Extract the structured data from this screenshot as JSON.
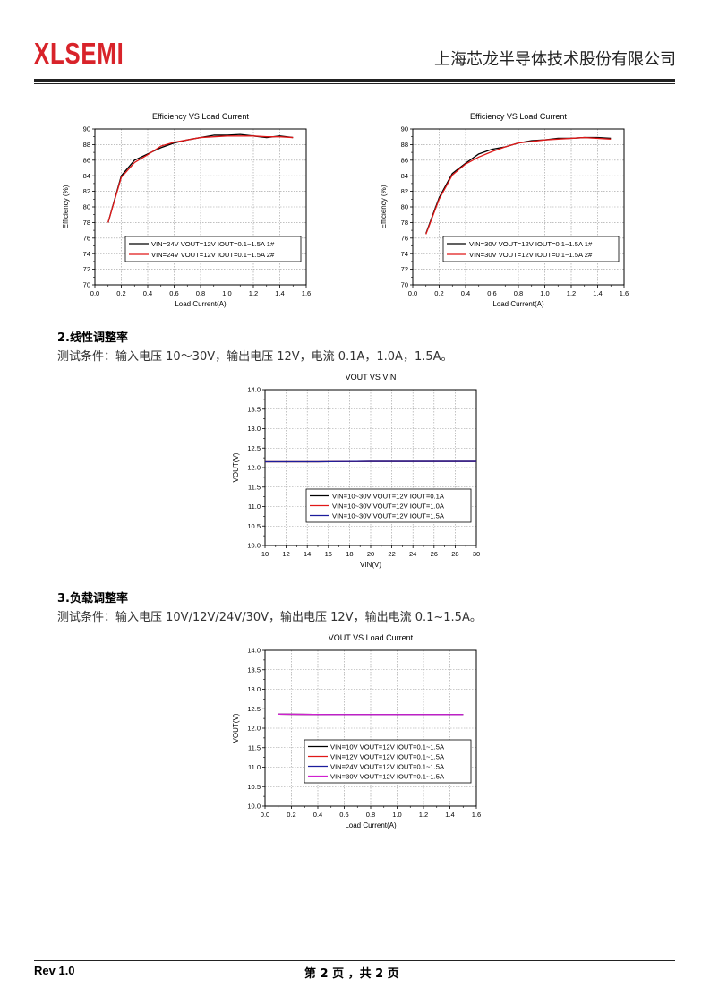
{
  "header": {
    "logo": "XLSEMI",
    "company": "上海芯龙半导体技术股份有限公司"
  },
  "sections": [
    {
      "heading": "2.线性调整率",
      "desc": "测试条件：输入电压 10～30V，输出电压 12V，电流 0.1A，1.0A，1.5A。"
    },
    {
      "heading": "3.负载调整率",
      "desc": "测试条件：输入电压 10V/12V/24V/30V，输出电压 12V，输出电流 0.1~1.5A。"
    }
  ],
  "footer": {
    "rev": "Rev 1.0",
    "page": "第 2 页 ，共 2 页"
  },
  "chart_data": [
    {
      "type": "line",
      "title": "Efficiency VS Load Current",
      "xlabel": "Load Current(A)",
      "ylabel": "Efficiency (%)",
      "xlim": [
        0.0,
        1.6
      ],
      "ylim": [
        70,
        90
      ],
      "xticks": [
        "0.0",
        "0.2",
        "0.4",
        "0.6",
        "0.8",
        "1.0",
        "1.2",
        "1.4",
        "1.6"
      ],
      "yticks": [
        "70",
        "72",
        "74",
        "76",
        "78",
        "80",
        "82",
        "84",
        "86",
        "88",
        "90"
      ],
      "grid": true,
      "legend_position": "bottom-right",
      "series": [
        {
          "name": "VIN=24V VOUT=12V IOUT=0.1~1.5A 1#",
          "color": "#000000",
          "points": [
            [
              0.1,
              78.0
            ],
            [
              0.2,
              84.0
            ],
            [
              0.3,
              86.0
            ],
            [
              0.4,
              86.8
            ],
            [
              0.5,
              87.6
            ],
            [
              0.6,
              88.2
            ],
            [
              0.7,
              88.6
            ],
            [
              0.8,
              88.9
            ],
            [
              0.9,
              89.2
            ],
            [
              1.0,
              89.2
            ],
            [
              1.1,
              89.3
            ],
            [
              1.2,
              89.1
            ],
            [
              1.3,
              88.9
            ],
            [
              1.4,
              89.1
            ],
            [
              1.5,
              88.9
            ]
          ]
        },
        {
          "name": "VIN=24V VOUT=12V IOUT=0.1~1.5A 2#",
          "color": "#e01818",
          "points": [
            [
              0.1,
              78.0
            ],
            [
              0.2,
              83.8
            ],
            [
              0.3,
              85.7
            ],
            [
              0.4,
              86.7
            ],
            [
              0.5,
              87.8
            ],
            [
              0.6,
              88.3
            ],
            [
              0.7,
              88.6
            ],
            [
              0.8,
              88.9
            ],
            [
              0.9,
              89.0
            ],
            [
              1.0,
              89.1
            ],
            [
              1.1,
              89.1
            ],
            [
              1.2,
              89.1
            ],
            [
              1.3,
              89.0
            ],
            [
              1.4,
              89.0
            ],
            [
              1.5,
              88.9
            ]
          ]
        }
      ]
    },
    {
      "type": "line",
      "title": "Efficiency VS Load Current",
      "xlabel": "Load Current(A)",
      "ylabel": "Efficiency (%)",
      "xlim": [
        0.0,
        1.6
      ],
      "ylim": [
        70,
        90
      ],
      "xticks": [
        "0.0",
        "0.2",
        "0.4",
        "0.6",
        "0.8",
        "1.0",
        "1.2",
        "1.4",
        "1.6"
      ],
      "yticks": [
        "70",
        "72",
        "74",
        "76",
        "78",
        "80",
        "82",
        "84",
        "86",
        "88",
        "90"
      ],
      "grid": true,
      "legend_position": "bottom-right",
      "series": [
        {
          "name": "VIN=30V VOUT=12V IOUT=0.1~1.5A 1#",
          "color": "#000000",
          "points": [
            [
              0.1,
              76.6
            ],
            [
              0.2,
              81.2
            ],
            [
              0.3,
              84.3
            ],
            [
              0.4,
              85.6
            ],
            [
              0.5,
              86.8
            ],
            [
              0.6,
              87.4
            ],
            [
              0.7,
              87.7
            ],
            [
              0.8,
              88.2
            ],
            [
              0.9,
              88.5
            ],
            [
              1.0,
              88.6
            ],
            [
              1.1,
              88.8
            ],
            [
              1.2,
              88.8
            ],
            [
              1.3,
              88.9
            ],
            [
              1.4,
              88.9
            ],
            [
              1.5,
              88.8
            ]
          ]
        },
        {
          "name": "VIN=30V VOUT=12V IOUT=0.1~1.5A 2#",
          "color": "#e01818",
          "points": [
            [
              0.1,
              76.5
            ],
            [
              0.2,
              81.0
            ],
            [
              0.3,
              84.1
            ],
            [
              0.4,
              85.5
            ],
            [
              0.5,
              86.4
            ],
            [
              0.6,
              87.1
            ],
            [
              0.7,
              87.7
            ],
            [
              0.8,
              88.2
            ],
            [
              0.9,
              88.4
            ],
            [
              1.0,
              88.6
            ],
            [
              1.1,
              88.7
            ],
            [
              1.2,
              88.8
            ],
            [
              1.3,
              88.9
            ],
            [
              1.4,
              88.8
            ],
            [
              1.5,
              88.7
            ]
          ]
        }
      ]
    },
    {
      "type": "line",
      "title": "VOUT VS VIN",
      "xlabel": "VIN(V)",
      "ylabel": "VOUT(V)",
      "xlim": [
        10,
        30
      ],
      "ylim": [
        10.0,
        14.0
      ],
      "xticks": [
        "10",
        "12",
        "14",
        "16",
        "18",
        "20",
        "22",
        "24",
        "26",
        "28",
        "30"
      ],
      "yticks": [
        "10.0",
        "10.5",
        "11.0",
        "11.5",
        "12.0",
        "12.5",
        "13.0",
        "13.5",
        "14.0"
      ],
      "grid": true,
      "legend_position": "bottom-right",
      "series": [
        {
          "name": "VIN=10~30V VOUT=12V IOUT=0.1A",
          "color": "#000000",
          "points": [
            [
              10,
              12.15
            ],
            [
              15,
              12.15
            ],
            [
              20,
              12.16
            ],
            [
              25,
              12.16
            ],
            [
              30,
              12.16
            ]
          ]
        },
        {
          "name": "VIN=10~30V VOUT=12V IOUT=1.0A",
          "color": "#e01818",
          "points": [
            [
              10,
              12.15
            ],
            [
              15,
              12.15
            ],
            [
              20,
              12.16
            ],
            [
              25,
              12.16
            ],
            [
              30,
              12.16
            ]
          ]
        },
        {
          "name": "VIN=10~30V VOUT=12V IOUT=1.5A",
          "color": "#1c1c9c",
          "points": [
            [
              10,
              12.15
            ],
            [
              15,
              12.15
            ],
            [
              20,
              12.16
            ],
            [
              25,
              12.16
            ],
            [
              30,
              12.16
            ]
          ]
        }
      ]
    },
    {
      "type": "line",
      "title": "VOUT VS Load Current",
      "xlabel": "Load Current(A)",
      "ylabel": "VOUT(V)",
      "xlim": [
        0.0,
        1.6
      ],
      "ylim": [
        10.0,
        14.0
      ],
      "xticks": [
        "0.0",
        "0.2",
        "0.4",
        "0.6",
        "0.8",
        "1.0",
        "1.2",
        "1.4",
        "1.6"
      ],
      "yticks": [
        "10.0",
        "10.5",
        "11.0",
        "11.5",
        "12.0",
        "12.5",
        "13.0",
        "13.5",
        "14.0"
      ],
      "grid": true,
      "legend_position": "bottom-right",
      "series": [
        {
          "name": "VIN=10V VOUT=12V IOUT=0.1~1.5A",
          "color": "#000000",
          "points": [
            [
              0.1,
              12.36
            ],
            [
              0.5,
              12.35
            ],
            [
              1.0,
              12.35
            ],
            [
              1.5,
              12.35
            ]
          ]
        },
        {
          "name": "VIN=12V VOUT=12V IOUT=0.1~1.5A",
          "color": "#e01818",
          "points": [
            [
              0.1,
              12.36
            ],
            [
              0.5,
              12.35
            ],
            [
              1.0,
              12.35
            ],
            [
              1.5,
              12.35
            ]
          ]
        },
        {
          "name": "VIN=24V VOUT=12V IOUT=0.1~1.5A",
          "color": "#1c1c9c",
          "points": [
            [
              0.1,
              12.36
            ],
            [
              0.5,
              12.35
            ],
            [
              1.0,
              12.35
            ],
            [
              1.5,
              12.35
            ]
          ]
        },
        {
          "name": "VIN=30V VOUT=12V IOUT=0.1~1.5A",
          "color": "#d020d0",
          "points": [
            [
              0.1,
              12.36
            ],
            [
              0.5,
              12.35
            ],
            [
              1.0,
              12.35
            ],
            [
              1.5,
              12.35
            ]
          ]
        }
      ]
    }
  ]
}
